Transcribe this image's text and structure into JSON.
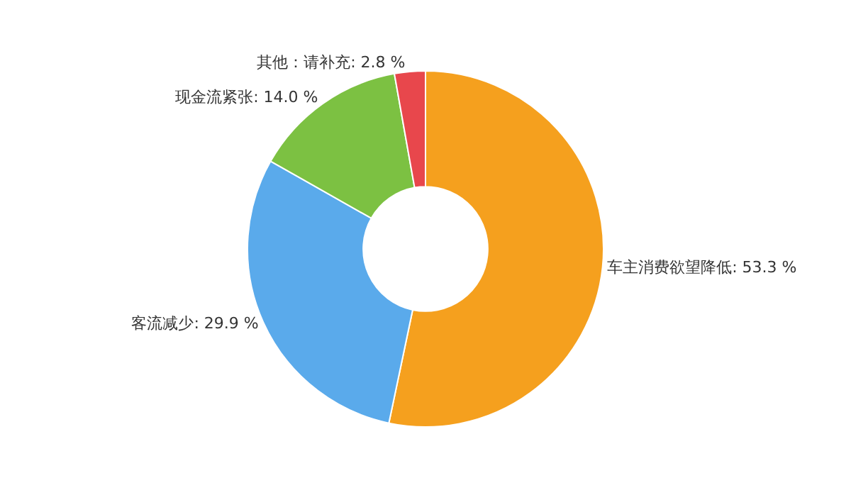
{
  "chart_data": {
    "type": "donut",
    "categories": [
      "车主消费欲望降低",
      "客流减少",
      "现金流紧张",
      "其他：请补充"
    ],
    "values": [
      53.3,
      29.9,
      14.0,
      2.8
    ],
    "value_labels": [
      "53.3 %",
      "29.9 %",
      "14.0 %",
      "2.8 %"
    ],
    "colors": [
      "#f5a01e",
      "#5aaaeb",
      "#7cc142",
      "#e8474c"
    ],
    "legend": false
  }
}
